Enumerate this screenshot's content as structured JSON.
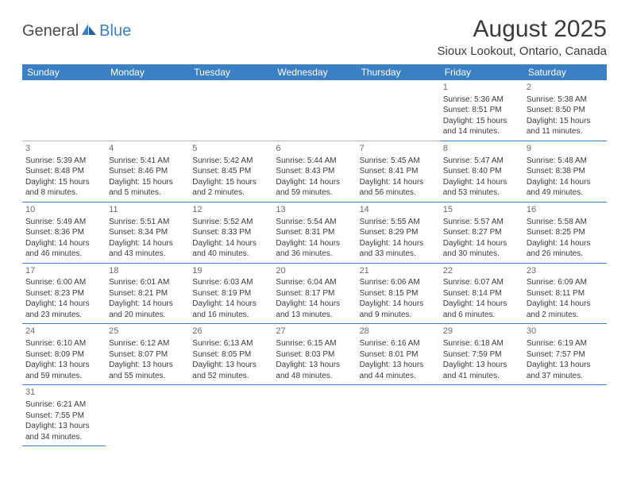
{
  "logo": {
    "textA": "General",
    "textB": "Blue"
  },
  "title": "August 2025",
  "location": "Sioux Lookout, Ontario, Canada",
  "headers": [
    "Sunday",
    "Monday",
    "Tuesday",
    "Wednesday",
    "Thursday",
    "Friday",
    "Saturday"
  ],
  "colors": {
    "header_bg": "#3b7fc4",
    "header_fg": "#ffffff",
    "row_bottom_border": "#3b7fc4",
    "row_top_border": "#b8b8b8",
    "text": "#3a3a3a"
  },
  "weeks": [
    [
      null,
      null,
      null,
      null,
      null,
      {
        "n": "1",
        "sr": "5:36 AM",
        "ss": "8:51 PM",
        "dl": "15 hours and 14 minutes."
      },
      {
        "n": "2",
        "sr": "5:38 AM",
        "ss": "8:50 PM",
        "dl": "15 hours and 11 minutes."
      }
    ],
    [
      {
        "n": "3",
        "sr": "5:39 AM",
        "ss": "8:48 PM",
        "dl": "15 hours and 8 minutes."
      },
      {
        "n": "4",
        "sr": "5:41 AM",
        "ss": "8:46 PM",
        "dl": "15 hours and 5 minutes."
      },
      {
        "n": "5",
        "sr": "5:42 AM",
        "ss": "8:45 PM",
        "dl": "15 hours and 2 minutes."
      },
      {
        "n": "6",
        "sr": "5:44 AM",
        "ss": "8:43 PM",
        "dl": "14 hours and 59 minutes."
      },
      {
        "n": "7",
        "sr": "5:45 AM",
        "ss": "8:41 PM",
        "dl": "14 hours and 56 minutes."
      },
      {
        "n": "8",
        "sr": "5:47 AM",
        "ss": "8:40 PM",
        "dl": "14 hours and 53 minutes."
      },
      {
        "n": "9",
        "sr": "5:48 AM",
        "ss": "8:38 PM",
        "dl": "14 hours and 49 minutes."
      }
    ],
    [
      {
        "n": "10",
        "sr": "5:49 AM",
        "ss": "8:36 PM",
        "dl": "14 hours and 46 minutes."
      },
      {
        "n": "11",
        "sr": "5:51 AM",
        "ss": "8:34 PM",
        "dl": "14 hours and 43 minutes."
      },
      {
        "n": "12",
        "sr": "5:52 AM",
        "ss": "8:33 PM",
        "dl": "14 hours and 40 minutes."
      },
      {
        "n": "13",
        "sr": "5:54 AM",
        "ss": "8:31 PM",
        "dl": "14 hours and 36 minutes."
      },
      {
        "n": "14",
        "sr": "5:55 AM",
        "ss": "8:29 PM",
        "dl": "14 hours and 33 minutes."
      },
      {
        "n": "15",
        "sr": "5:57 AM",
        "ss": "8:27 PM",
        "dl": "14 hours and 30 minutes."
      },
      {
        "n": "16",
        "sr": "5:58 AM",
        "ss": "8:25 PM",
        "dl": "14 hours and 26 minutes."
      }
    ],
    [
      {
        "n": "17",
        "sr": "6:00 AM",
        "ss": "8:23 PM",
        "dl": "14 hours and 23 minutes."
      },
      {
        "n": "18",
        "sr": "6:01 AM",
        "ss": "8:21 PM",
        "dl": "14 hours and 20 minutes."
      },
      {
        "n": "19",
        "sr": "6:03 AM",
        "ss": "8:19 PM",
        "dl": "14 hours and 16 minutes."
      },
      {
        "n": "20",
        "sr": "6:04 AM",
        "ss": "8:17 PM",
        "dl": "14 hours and 13 minutes."
      },
      {
        "n": "21",
        "sr": "6:06 AM",
        "ss": "8:15 PM",
        "dl": "14 hours and 9 minutes."
      },
      {
        "n": "22",
        "sr": "6:07 AM",
        "ss": "8:14 PM",
        "dl": "14 hours and 6 minutes."
      },
      {
        "n": "23",
        "sr": "6:09 AM",
        "ss": "8:11 PM",
        "dl": "14 hours and 2 minutes."
      }
    ],
    [
      {
        "n": "24",
        "sr": "6:10 AM",
        "ss": "8:09 PM",
        "dl": "13 hours and 59 minutes."
      },
      {
        "n": "25",
        "sr": "6:12 AM",
        "ss": "8:07 PM",
        "dl": "13 hours and 55 minutes."
      },
      {
        "n": "26",
        "sr": "6:13 AM",
        "ss": "8:05 PM",
        "dl": "13 hours and 52 minutes."
      },
      {
        "n": "27",
        "sr": "6:15 AM",
        "ss": "8:03 PM",
        "dl": "13 hours and 48 minutes."
      },
      {
        "n": "28",
        "sr": "6:16 AM",
        "ss": "8:01 PM",
        "dl": "13 hours and 44 minutes."
      },
      {
        "n": "29",
        "sr": "6:18 AM",
        "ss": "7:59 PM",
        "dl": "13 hours and 41 minutes."
      },
      {
        "n": "30",
        "sr": "6:19 AM",
        "ss": "7:57 PM",
        "dl": "13 hours and 37 minutes."
      }
    ],
    [
      {
        "n": "31",
        "sr": "6:21 AM",
        "ss": "7:55 PM",
        "dl": "13 hours and 34 minutes."
      },
      null,
      null,
      null,
      null,
      null,
      null
    ]
  ],
  "labels": {
    "sunrise": "Sunrise: ",
    "sunset": "Sunset: ",
    "daylight": "Daylight: "
  }
}
